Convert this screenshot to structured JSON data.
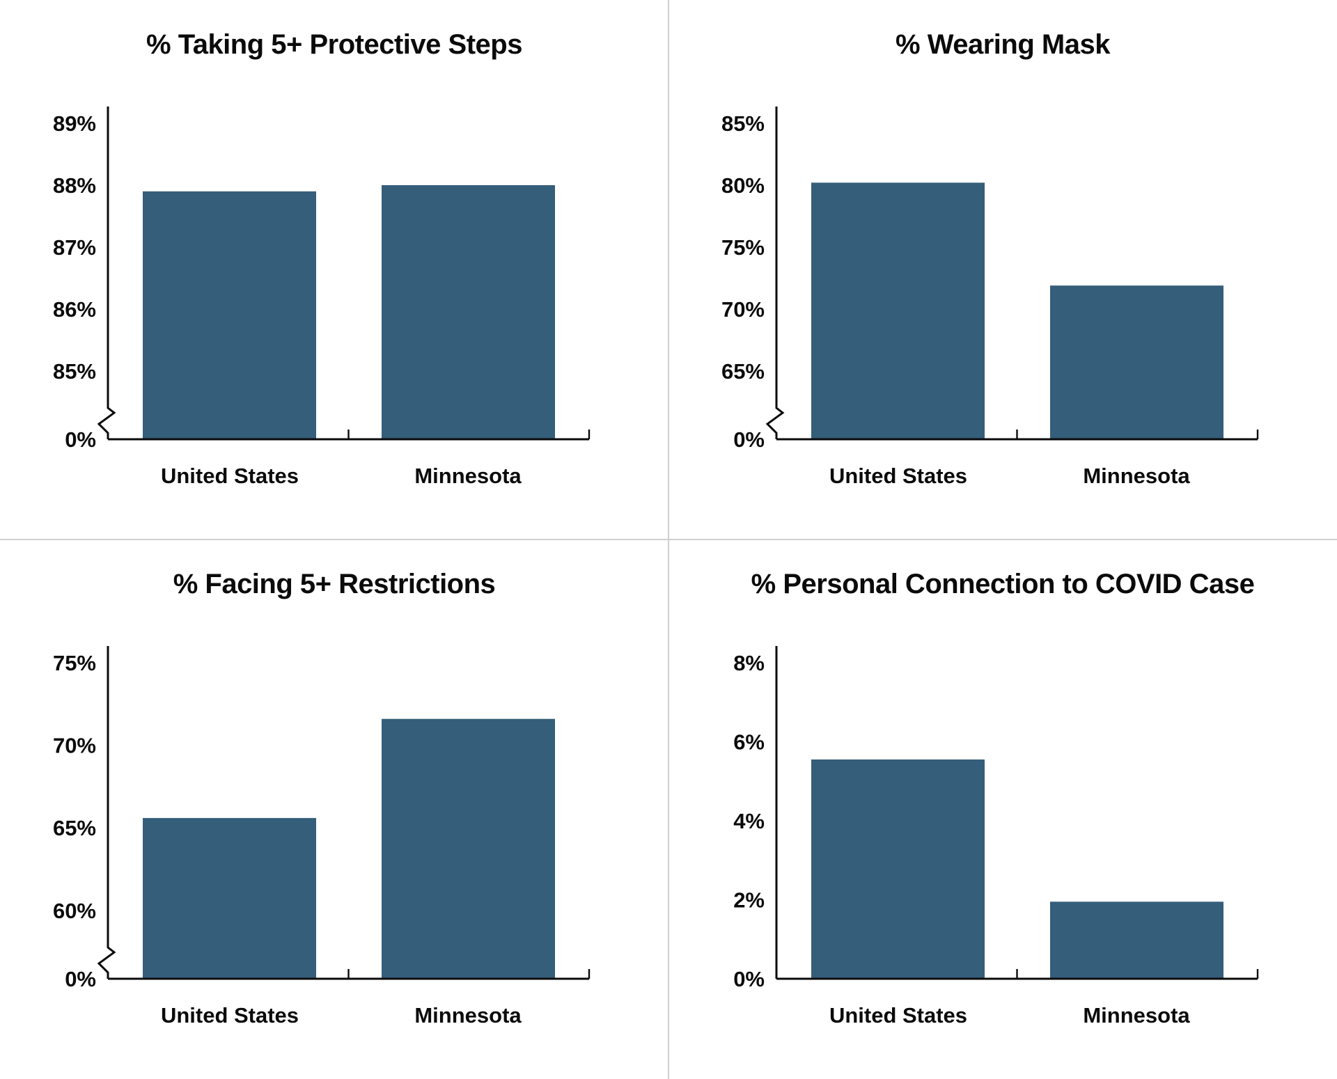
{
  "colors": {
    "bar": "#355E7A",
    "axis": "#0b0b0b",
    "text": "#0b0b0b",
    "divider": "#cfcfcf",
    "background": "#ffffff"
  },
  "chart_data": [
    {
      "type": "bar",
      "title": "% Taking 5+ Protective Steps",
      "categories": [
        "United States",
        "Minnesota"
      ],
      "values": [
        87.9,
        88.0
      ],
      "tick_suffix": "%",
      "yticks": [
        0,
        85,
        86,
        87,
        88,
        89
      ],
      "ylim": [
        0,
        89.3
      ],
      "axis_break": true,
      "grid": false,
      "legend": false
    },
    {
      "type": "bar",
      "title": "% Wearing Mask",
      "categories": [
        "United States",
        "Minnesota"
      ],
      "values": [
        80.2,
        71.9
      ],
      "tick_suffix": "%",
      "yticks": [
        0,
        65,
        70,
        75,
        80,
        85
      ],
      "ylim": [
        0,
        86.4
      ],
      "axis_break": true,
      "grid": false,
      "legend": false
    },
    {
      "type": "bar",
      "title": "% Facing 5+ Restrictions",
      "categories": [
        "United States",
        "Minnesota"
      ],
      "values": [
        65.6,
        71.6
      ],
      "tick_suffix": "%",
      "yticks": [
        0,
        60,
        65,
        70,
        75
      ],
      "ylim": [
        0,
        76.0
      ],
      "axis_break": true,
      "grid": false,
      "legend": false
    },
    {
      "type": "bar",
      "title": "% Personal Connection to COVID Case",
      "categories": [
        "United States",
        "Minnesota"
      ],
      "values": [
        5.55,
        1.95
      ],
      "tick_suffix": "%",
      "yticks": [
        0,
        2,
        4,
        6,
        8
      ],
      "ylim": [
        0,
        8.4
      ],
      "axis_break": false,
      "grid": false,
      "legend": false
    }
  ]
}
